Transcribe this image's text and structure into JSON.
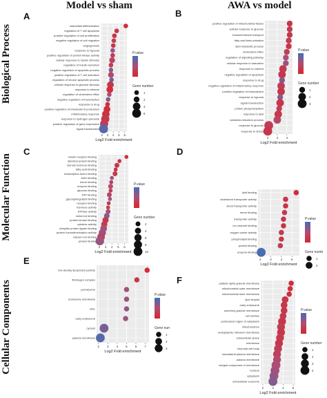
{
  "column_titles": [
    "Model vs sham",
    "AWA vs model"
  ],
  "row_titles": [
    "Biological Process",
    "Molecular Function",
    "Cellular Components"
  ],
  "panel_letters": [
    "A",
    "B",
    "C",
    "D",
    "E",
    "F"
  ],
  "chart_data": [
    {
      "panel": "A",
      "type": "scatter",
      "xlabel": "Log2 Fold enrichment",
      "xlim": [
        1.8,
        6.4
      ],
      "xticks": [
        2,
        3,
        4,
        5,
        6
      ],
      "color_legend_title": "P.value",
      "size_legend_title": "Gene number",
      "size_ticks": [
        1,
        2,
        4,
        6
      ],
      "categories": [
        "osteoblast differentiation",
        "regulation of T cell apoptosis",
        "positive regulation of cell proliferation",
        "negative regulation of cell migration",
        "angiogenesis",
        "response to hypoxia",
        "positive regulation of protein kinase activity",
        "cellular response to insulin stimulus",
        "regulation of insulin secretion",
        "negative regulation of apoptotic process",
        "positive regulation of T cell activation",
        "regulation of neuron apoptotic process",
        "cellular response to glucose stimulus",
        "response to ethanol",
        "regulation of cholesterol efflux",
        "negative regulation of transcription",
        "response to drug",
        "positive regulation of interleukin-6 production",
        "inflammatory response",
        "response to hydrogen peroxide",
        "positive regulation of gene expression",
        "signal transduction"
      ],
      "x": [
        6.2,
        4.6,
        4.2,
        4.1,
        4.0,
        3.9,
        3.9,
        3.8,
        3.6,
        3.6,
        3.6,
        3.7,
        3.5,
        3.4,
        3.3,
        3.1,
        3.0,
        2.9,
        2.7,
        2.6,
        2.4,
        2.3
      ],
      "size": [
        1,
        1,
        1,
        1,
        1,
        1,
        1,
        2,
        1,
        1,
        2,
        1,
        3,
        3,
        1,
        1,
        1,
        3,
        4,
        5,
        5,
        6
      ],
      "color": [
        0.1,
        0.2,
        0.15,
        0.3,
        0.2,
        0.6,
        0.3,
        0.4,
        0.25,
        0.7,
        0.45,
        0.8,
        0.2,
        0.1,
        0.5,
        0.7,
        0.1,
        0.1,
        0.15,
        0.2,
        0.3,
        0.9
      ]
    },
    {
      "panel": "B",
      "type": "scatter",
      "xlabel": "Log2 Fold enrichment",
      "xlim": [
        1.7,
        4.6
      ],
      "xticks": [
        2,
        3,
        4
      ],
      "color_legend_title": "P.value",
      "size_legend_title": "Gene number",
      "size_ticks": [
        1,
        2,
        3
      ],
      "categories": [
        "positive regulation of mitochondrial fission",
        "cellular response to glucose",
        "transmembrane transport",
        "fatty acid beta-oxidation",
        "lipid metabolic process",
        "cholesterol efflux",
        "regulation of signaling pathway",
        "cellular response to starvation",
        "response to nutrient",
        "negative regulation of apoptosis",
        "response to drug",
        "negative regulation of inflammatory response",
        "positive regulation of transcription",
        "response to hypoxia",
        "signal transduction",
        "protein phosphorylation",
        "response to lipid",
        "oxidation-reduction process",
        "response to glucose",
        "response to stress"
      ],
      "x": [
        4.3,
        4.3,
        4.3,
        4.2,
        4.2,
        4.0,
        3.9,
        3.9,
        3.6,
        3.5,
        3.5,
        3.4,
        3.4,
        3.3,
        3.3,
        3.2,
        3.1,
        3.0,
        2.1,
        2.0
      ],
      "size": [
        1,
        1,
        1,
        1,
        1,
        1,
        1,
        1,
        2,
        2,
        1,
        2,
        2,
        1,
        2,
        1,
        2,
        2,
        3,
        3
      ],
      "color": [
        0.2,
        0.3,
        0.2,
        0.3,
        0.2,
        0.3,
        0.5,
        0.6,
        0.25,
        0.2,
        0.7,
        0.3,
        0.2,
        0.7,
        0.2,
        0.3,
        0.2,
        0.4,
        0.3,
        0.2
      ]
    },
    {
      "panel": "C",
      "type": "scatter",
      "xlabel": "Log2 Fold enrichment",
      "xlim": [
        1.8,
        6.6
      ],
      "xticks": [
        2,
        3,
        4,
        5,
        6
      ],
      "color_legend_title": "P.value",
      "size_legend_title": "Gene number",
      "size_ticks": [
        2,
        4,
        6,
        8,
        10
      ],
      "categories": [
        "insulin receptor binding",
        "identical protein binding",
        "steroid hormone binding",
        "fatty acid binding",
        "transcription factor binding",
        "NAD binding",
        "heme binding",
        "enzyme binding",
        "glucose binding",
        "ATP binding",
        "glycosphingolipid binding",
        "receptor binding",
        "hormone activity",
        "ATPase activity",
        "metal ion binding",
        "protein kinase binding",
        "cytokine activity",
        "ubiquitin protein ligase binding",
        "protein homodimerization activity",
        "calcium ion binding",
        "protein binding"
      ],
      "x": [
        6.3,
        5.2,
        4.8,
        4.6,
        4.5,
        4.0,
        3.9,
        3.8,
        3.8,
        3.6,
        3.7,
        3.5,
        3.4,
        3.4,
        3.2,
        3.0,
        2.8,
        2.7,
        2.5,
        2.3,
        2.1
      ],
      "size": [
        1,
        1,
        2,
        1,
        2,
        1,
        1,
        2,
        1,
        2,
        1,
        1,
        1,
        2,
        3,
        4,
        4,
        5,
        6,
        7,
        9
      ],
      "color": [
        0.1,
        0.2,
        0.2,
        0.15,
        0.25,
        0.6,
        0.3,
        0.5,
        0.3,
        0.4,
        0.6,
        0.2,
        0.3,
        0.5,
        0.7,
        0.2,
        0.3,
        0.5,
        0.6,
        0.4,
        0.6
      ]
    },
    {
      "panel": "D",
      "type": "scatter",
      "xlabel": "Log2 Fold enrichment",
      "xlim": [
        1.8,
        5.7
      ],
      "xticks": [
        2,
        3,
        4,
        5
      ],
      "color_legend_title": "P.value",
      "size_legend_title": "Gene number",
      "size_ticks": [
        1,
        2,
        3,
        4
      ],
      "categories": [
        "lipid binding",
        "cholesterol transporter activity",
        "sterol transporter activity",
        "heme binding",
        "transporter activity",
        "ion channel binding",
        "oxygen carrier activity",
        "phospholipid binding",
        "protein binding",
        "enzyme binding"
      ],
      "x": [
        5.4,
        4.4,
        4.4,
        4.3,
        4.2,
        4.2,
        4.0,
        4.0,
        3.9,
        2.1
      ],
      "size": [
        1,
        1,
        1,
        1,
        1,
        1,
        1,
        1,
        1,
        4
      ],
      "color": [
        0.1,
        0.2,
        0.15,
        0.25,
        0.2,
        0.15,
        0.25,
        0.2,
        0.3,
        0.95
      ]
    },
    {
      "panel": "E",
      "type": "scatter",
      "xlabel": "Log2 Fold enrichment",
      "xlim": [
        1.8,
        7.4
      ],
      "xticks": [
        2,
        3,
        4,
        5,
        6,
        7
      ],
      "color_legend_title": "P.value",
      "size_legend_title": "Gene number",
      "size_ticks": [
        1,
        2,
        3,
        4
      ],
      "categories": [
        "low-density lipoprotein particle",
        "fibrinogen complex",
        "peroxisome",
        "endosome membrane",
        "HDL",
        "early endosome",
        "cytosol",
        "plasma membrane"
      ],
      "x": [
        7.2,
        6.1,
        5.0,
        5.0,
        5.0,
        4.9,
        2.6,
        2.2
      ],
      "size": [
        1,
        1,
        1,
        1,
        1,
        1,
        4,
        4
      ],
      "color": [
        0.1,
        0.2,
        0.55,
        0.6,
        0.65,
        0.6,
        0.75,
        0.9
      ]
    },
    {
      "panel": "F",
      "type": "scatter",
      "xlabel": "Log2 Fold enrichment",
      "xlim": [
        1.8,
        5.2
      ],
      "xticks": [
        2,
        3,
        4,
        5
      ],
      "color_legend_title": "P.value",
      "size_legend_title": "Gene number",
      "size_ticks": [
        1,
        2,
        3,
        4
      ],
      "categories": [
        "platelet alpha granule membrane",
        "mitochondrial outer membrane",
        "mitochondrial inner membrane",
        "lipid droplet",
        "early endosome",
        "secretory granule membrane",
        "cell surface",
        "perinuclear region of cytoplasm",
        "mitochondrion",
        "endoplasmic reticulum membrane",
        "extracellular space",
        "membrane",
        "neuronal cell body",
        "basolateral plasma membrane",
        "plasma membrane",
        "integral component of membrane",
        "nucleus",
        "cytoplasm",
        "extracellular exosome"
      ],
      "x": [
        4.8,
        4.7,
        4.6,
        4.2,
        4.1,
        4.1,
        4.0,
        3.9,
        3.8,
        3.8,
        3.7,
        3.6,
        3.5,
        3.4,
        3.4,
        3.3,
        3.2,
        3.1,
        3.0
      ],
      "size": [
        1,
        1,
        1,
        2,
        2,
        2,
        2,
        3,
        3,
        3,
        3,
        3,
        3,
        3,
        3,
        4,
        4,
        4,
        4
      ],
      "color": [
        0.1,
        0.15,
        0.1,
        0.2,
        0.2,
        0.2,
        0.25,
        0.2,
        0.3,
        0.2,
        0.25,
        0.2,
        0.3,
        0.35,
        0.45,
        0.5,
        0.55,
        0.6,
        0.7
      ]
    }
  ],
  "colors": {
    "low": "#d7262e",
    "mid": "#b04d72",
    "high": "#3f6fb8"
  }
}
